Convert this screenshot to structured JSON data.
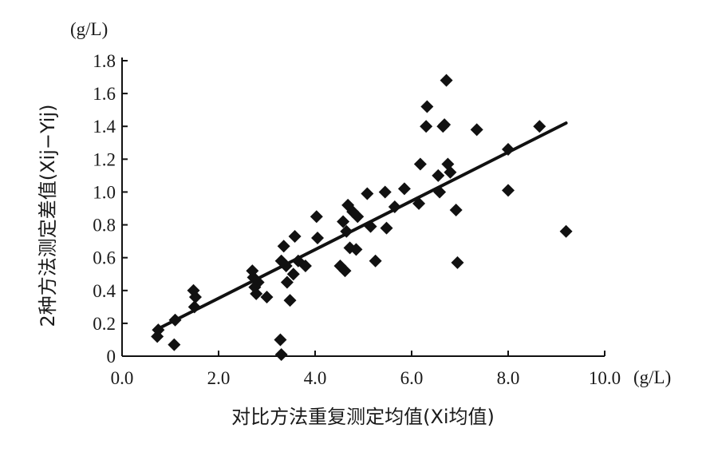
{
  "chart_data": {
    "type": "scatter",
    "x_unit": "(g/L)",
    "y_unit": "(g/L)",
    "xlabel": "对比方法重复测定均值(Xi均值)",
    "ylabel": "2种方法测定差值(Xij−Yij)",
    "xlim": [
      0,
      10
    ],
    "ylim": [
      0,
      1.8
    ],
    "x_ticks": [
      0,
      2,
      4,
      6,
      8,
      10
    ],
    "x_tick_labels": [
      "0.0",
      "2.0",
      "4.0",
      "6.0",
      "8.0",
      "10.0"
    ],
    "y_ticks": [
      0,
      0.2,
      0.4,
      0.6,
      0.8,
      1.0,
      1.2,
      1.4,
      1.6,
      1.8
    ],
    "y_tick_labels": [
      "0",
      "0.2",
      "0.4",
      "0.6",
      "0.8",
      "1.0",
      "1.2",
      "1.4",
      "1.6",
      "1.8"
    ],
    "grid": false,
    "legend": "none",
    "marker": "diamond",
    "marker_color": "#111111",
    "trendline": {
      "x": [
        0.7,
        9.2
      ],
      "y": [
        0.16,
        1.42
      ]
    },
    "points": [
      {
        "x": 0.73,
        "y": 0.12
      },
      {
        "x": 0.75,
        "y": 0.16
      },
      {
        "x": 1.08,
        "y": 0.07
      },
      {
        "x": 1.1,
        "y": 0.22
      },
      {
        "x": 1.48,
        "y": 0.4
      },
      {
        "x": 1.5,
        "y": 0.3
      },
      {
        "x": 1.52,
        "y": 0.36
      },
      {
        "x": 2.7,
        "y": 0.52
      },
      {
        "x": 2.72,
        "y": 0.48
      },
      {
        "x": 2.75,
        "y": 0.42
      },
      {
        "x": 2.78,
        "y": 0.38
      },
      {
        "x": 2.82,
        "y": 0.45
      },
      {
        "x": 3.0,
        "y": 0.36
      },
      {
        "x": 3.28,
        "y": 0.1
      },
      {
        "x": 3.3,
        "y": 0.01
      },
      {
        "x": 3.3,
        "y": 0.58
      },
      {
        "x": 3.35,
        "y": 0.67
      },
      {
        "x": 3.4,
        "y": 0.55
      },
      {
        "x": 3.42,
        "y": 0.45
      },
      {
        "x": 3.48,
        "y": 0.34
      },
      {
        "x": 3.55,
        "y": 0.5
      },
      {
        "x": 3.58,
        "y": 0.73
      },
      {
        "x": 3.65,
        "y": 0.58
      },
      {
        "x": 3.8,
        "y": 0.55
      },
      {
        "x": 4.03,
        "y": 0.85
      },
      {
        "x": 4.05,
        "y": 0.72
      },
      {
        "x": 4.52,
        "y": 0.55
      },
      {
        "x": 4.58,
        "y": 0.82
      },
      {
        "x": 4.62,
        "y": 0.52
      },
      {
        "x": 4.65,
        "y": 0.76
      },
      {
        "x": 4.68,
        "y": 0.92
      },
      {
        "x": 4.72,
        "y": 0.66
      },
      {
        "x": 4.78,
        "y": 0.88
      },
      {
        "x": 4.85,
        "y": 0.65
      },
      {
        "x": 4.88,
        "y": 0.85
      },
      {
        "x": 5.08,
        "y": 0.99
      },
      {
        "x": 5.15,
        "y": 0.79
      },
      {
        "x": 5.25,
        "y": 0.58
      },
      {
        "x": 5.45,
        "y": 1.0
      },
      {
        "x": 5.48,
        "y": 0.78
      },
      {
        "x": 5.65,
        "y": 0.91
      },
      {
        "x": 5.85,
        "y": 1.02
      },
      {
        "x": 6.15,
        "y": 0.93
      },
      {
        "x": 6.18,
        "y": 1.17
      },
      {
        "x": 6.3,
        "y": 1.4
      },
      {
        "x": 6.32,
        "y": 1.52
      },
      {
        "x": 6.55,
        "y": 1.1
      },
      {
        "x": 6.58,
        "y": 1.0
      },
      {
        "x": 6.65,
        "y": 1.4
      },
      {
        "x": 6.68,
        "y": 1.41
      },
      {
        "x": 6.72,
        "y": 1.68
      },
      {
        "x": 6.75,
        "y": 1.17
      },
      {
        "x": 6.8,
        "y": 1.12
      },
      {
        "x": 6.92,
        "y": 0.89
      },
      {
        "x": 6.95,
        "y": 0.57
      },
      {
        "x": 7.35,
        "y": 1.38
      },
      {
        "x": 8.0,
        "y": 1.26
      },
      {
        "x": 8.0,
        "y": 1.01
      },
      {
        "x": 8.65,
        "y": 1.4
      },
      {
        "x": 9.2,
        "y": 0.76
      }
    ]
  }
}
